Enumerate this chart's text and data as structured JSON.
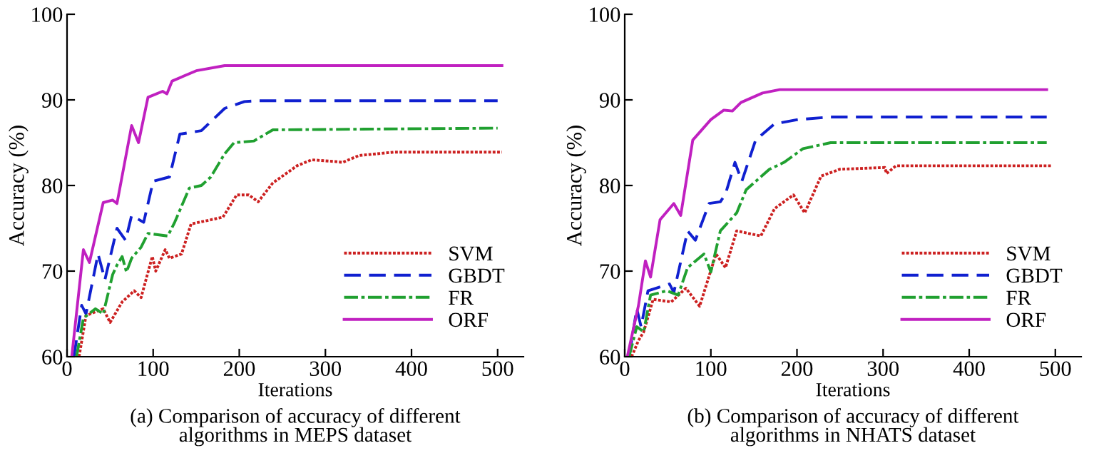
{
  "chart_data": [
    {
      "type": "line",
      "xlabel": "Iterations",
      "ylabel": "Accuracy (%)",
      "xlim": [
        0,
        530
      ],
      "ylim": [
        60,
        100
      ],
      "xticks": [
        0,
        100,
        200,
        300,
        400,
        500
      ],
      "yticks": [
        60,
        70,
        80,
        90,
        100
      ],
      "grid": false,
      "legend": "bottom right",
      "marker": "none",
      "annotations": [
        "(a) Comparison of accuracy of different\nalgorithms in MEPS dataset"
      ],
      "series": [
        {
          "name": "SVM",
          "color": "#cc2020",
          "line_style": "dotted",
          "x": [
            14,
            22,
            42,
            50,
            64,
            78,
            86,
            99,
            103,
            114,
            119,
            133,
            144,
            181,
            197,
            211,
            222,
            239,
            267,
            284,
            311,
            320,
            339,
            380,
            505
          ],
          "values": [
            60,
            64.8,
            65.6,
            64,
            66.4,
            67.7,
            66.9,
            71.7,
            70,
            72.5,
            71.5,
            72,
            75.5,
            76.3,
            78.9,
            78.9,
            78.1,
            80.3,
            82.3,
            83,
            82.8,
            82.7,
            83.5,
            83.9,
            83.9
          ]
        },
        {
          "name": "GBDT",
          "color": "#1020d0",
          "line_style": "dashed",
          "x": [
            8,
            17,
            22,
            36,
            44,
            58,
            68,
            75,
            89,
            100,
            119,
            131,
            156,
            183,
            206,
            222,
            500
          ],
          "values": [
            60,
            66,
            65,
            72,
            69,
            75,
            73.6,
            76.5,
            75.7,
            80.5,
            81,
            86,
            86.4,
            89,
            89.8,
            89.9,
            89.9
          ]
        },
        {
          "name": "FR",
          "color": "#20a030",
          "line_style": "dashdot",
          "x": [
            11,
            19,
            33,
            42,
            53,
            58,
            64,
            69,
            75,
            86,
            94,
            117,
            125,
            142,
            156,
            167,
            183,
            194,
            217,
            239,
            500
          ],
          "values": [
            60,
            64.5,
            65.6,
            65,
            69.6,
            70.7,
            71.7,
            69.9,
            71.5,
            72.8,
            74.4,
            74.1,
            75.7,
            79.7,
            80,
            81,
            83.7,
            85,
            85.2,
            86.5,
            86.7
          ]
        },
        {
          "name": "ORF",
          "color": "#c020c0",
          "line_style": "solid",
          "x": [
            5.5,
            19,
            26,
            42,
            53,
            58,
            75,
            83,
            94,
            111,
            116,
            122,
            150,
            183,
            505
          ],
          "values": [
            60,
            72.5,
            71,
            78,
            78.3,
            77.9,
            87,
            85,
            90.3,
            91,
            90.7,
            92.2,
            93.4,
            94,
            94
          ]
        }
      ]
    },
    {
      "type": "line",
      "xlabel": "Iterations",
      "ylabel": "Accuracy (%)",
      "xlim": [
        0,
        530
      ],
      "ylim": [
        60,
        100
      ],
      "xticks": [
        0,
        100,
        200,
        300,
        400,
        500
      ],
      "yticks": [
        60,
        70,
        80,
        90,
        100
      ],
      "grid": false,
      "legend": "bottom right",
      "marker": "none",
      "annotations": [
        "(b) Comparison of accuracy of different\nalgorithms in NHATS dataset"
      ],
      "series": [
        {
          "name": "SVM",
          "color": "#cc2020",
          "line_style": "dotted",
          "x": [
            8,
            16,
            22,
            33,
            54,
            71,
            87,
            106,
            117,
            130,
            158,
            174,
            196,
            209,
            228,
            250,
            302,
            304,
            315,
            495
          ],
          "values": [
            60,
            61.9,
            62.9,
            66.7,
            66.4,
            68,
            65.9,
            72,
            70.4,
            74.7,
            74.1,
            77.3,
            78.9,
            76.8,
            81.1,
            81.9,
            82.1,
            81.4,
            82.3,
            82.3
          ]
        },
        {
          "name": "GBDT",
          "color": "#1020d0",
          "line_style": "dashed",
          "x": [
            5,
            14,
            19,
            27,
            52,
            57,
            73,
            82,
            98,
            111,
            117,
            128,
            136,
            152,
            174,
            201,
            239,
            490
          ],
          "values": [
            60,
            65.6,
            63.5,
            67.7,
            68.5,
            67.5,
            74.7,
            73.6,
            77.9,
            78.1,
            79,
            82.7,
            80.5,
            85.3,
            87.2,
            87.7,
            88,
            88
          ]
        },
        {
          "name": "FR",
          "color": "#20a030",
          "line_style": "dashdot",
          "x": [
            5,
            14,
            22,
            30,
            49,
            62,
            73,
            92,
            100,
            111,
            130,
            141,
            168,
            185,
            207,
            239,
            490
          ],
          "values": [
            60,
            63.5,
            62.9,
            67.2,
            67.7,
            67.2,
            70.4,
            72,
            69.9,
            74.7,
            76.8,
            79.5,
            81.9,
            82.7,
            84.3,
            85,
            85
          ]
        },
        {
          "name": "ORF",
          "color": "#c020c0",
          "line_style": "solid",
          "x": [
            3,
            16,
            24,
            30,
            41,
            57,
            65,
            79,
            100,
            115,
            125,
            135,
            160,
            180,
            490
          ],
          "values": [
            60,
            66,
            71.2,
            69.3,
            76,
            77.9,
            76.5,
            85.3,
            87.7,
            88.8,
            88.7,
            89.7,
            90.8,
            91.2,
            91.2
          ]
        }
      ]
    }
  ]
}
